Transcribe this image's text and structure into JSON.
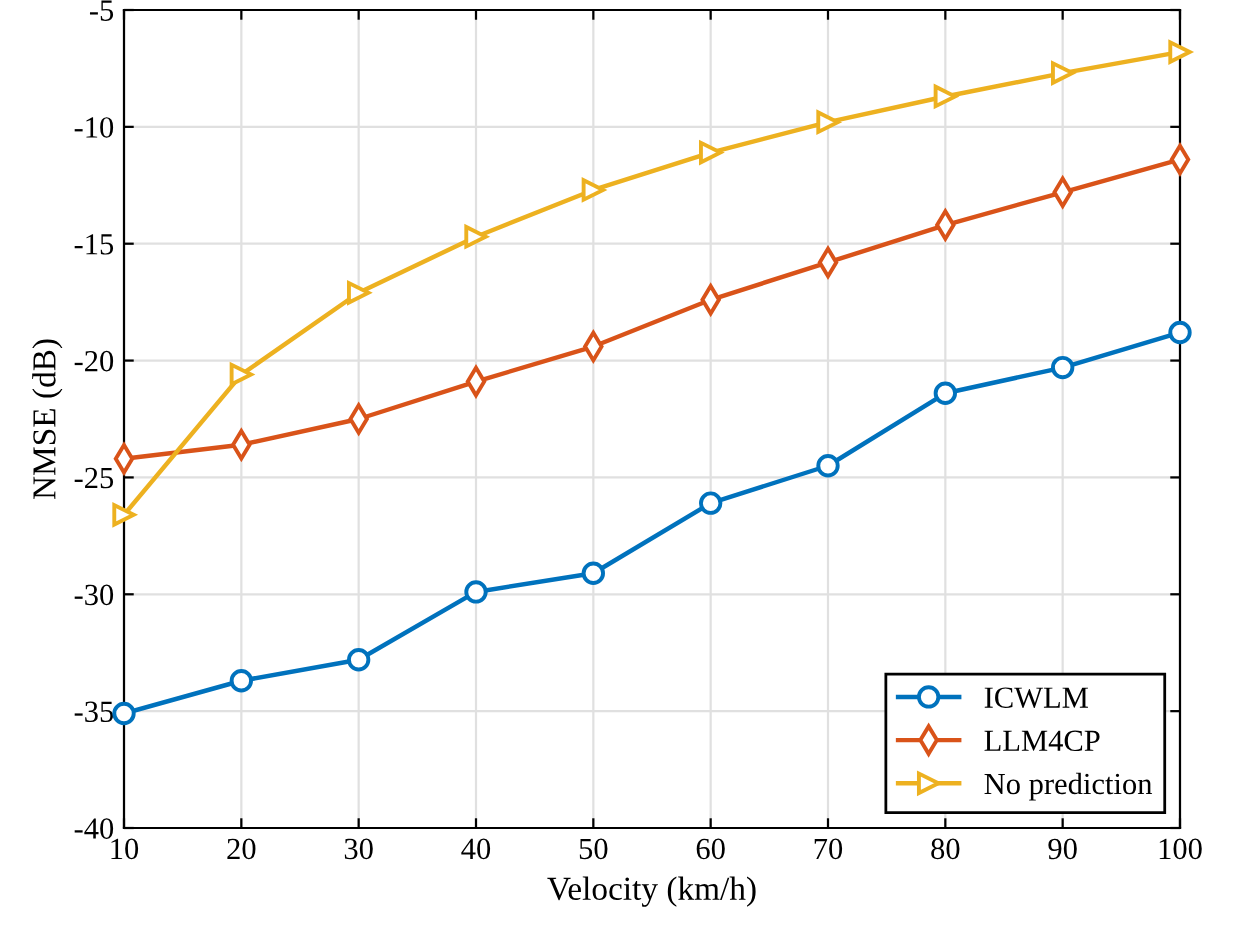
{
  "chart_data": {
    "type": "line",
    "xlabel": "Velocity (km/h)",
    "ylabel": "NMSE (dB)",
    "x": [
      10,
      20,
      30,
      40,
      50,
      60,
      70,
      80,
      90,
      100
    ],
    "series": [
      {
        "name": "ICWLM",
        "color": "#0072bd",
        "marker": "circle",
        "values": [
          -35.1,
          -33.7,
          -32.8,
          -29.9,
          -29.1,
          -26.1,
          -24.5,
          -21.4,
          -20.3,
          -18.8
        ]
      },
      {
        "name": "LLM4CP",
        "color": "#d95319",
        "marker": "diamond",
        "values": [
          -24.2,
          -23.6,
          -22.5,
          -20.9,
          -19.4,
          -17.4,
          -15.8,
          -14.2,
          -12.8,
          -11.4
        ]
      },
      {
        "name": "No prediction",
        "color": "#edb120",
        "marker": "triangle",
        "values": [
          -26.6,
          -20.6,
          -17.1,
          -14.7,
          -12.7,
          -11.1,
          -9.8,
          -8.7,
          -7.7,
          -6.8
        ]
      }
    ],
    "xlim": [
      10,
      100
    ],
    "xticks": [
      10,
      20,
      30,
      40,
      50,
      60,
      70,
      80,
      90,
      100
    ],
    "ylim": [
      -40,
      -5
    ],
    "yticks": [
      -40,
      -35,
      -30,
      -25,
      -20,
      -15,
      -10,
      -5
    ],
    "grid": true,
    "legend": "bottom right",
    "line_style": "solid"
  }
}
